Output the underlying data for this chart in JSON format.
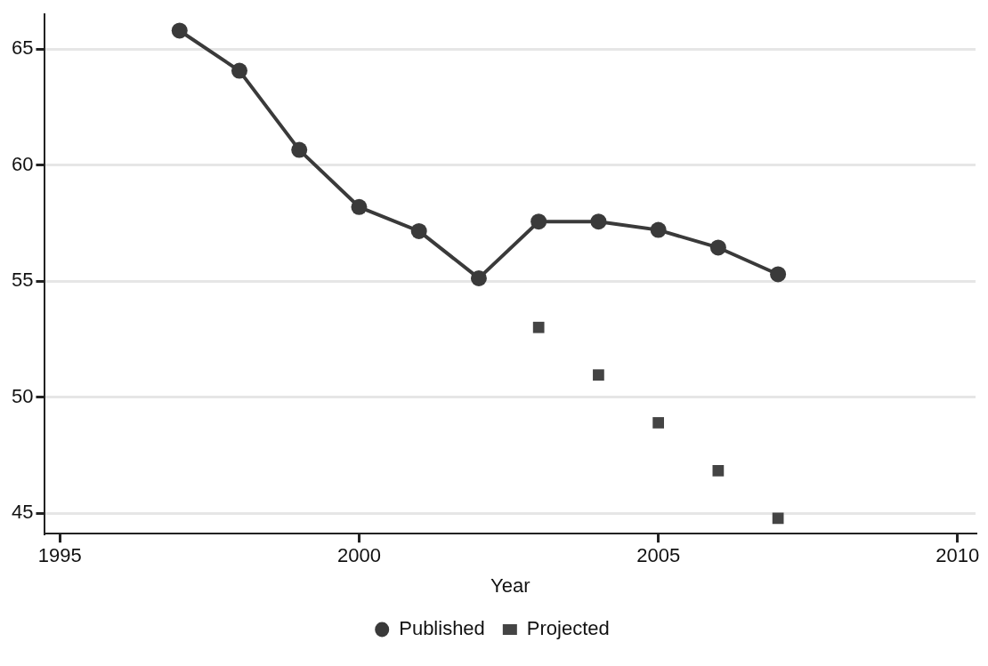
{
  "chart_data": {
    "type": "line",
    "xlabel": "Year",
    "xlim": [
      1994.75,
      2010.3
    ],
    "xticks": [
      1995,
      2000,
      2005,
      2010
    ],
    "ylim": [
      44.12,
      66.5
    ],
    "yticks": [
      45,
      50,
      55,
      60,
      65
    ],
    "grid": "y",
    "legend": "bottom",
    "series": [
      {
        "name": "Published",
        "marker": "circle",
        "line_style": "solid",
        "color": "#3a3a3a",
        "x": [
          1997,
          1998,
          1999,
          2000,
          2001,
          2002,
          2003,
          2004,
          2005,
          2006,
          2007
        ],
        "values": [
          65.8,
          64.07,
          60.66,
          58.2,
          57.16,
          55.13,
          57.57,
          57.57,
          57.21,
          56.45,
          55.3
        ]
      },
      {
        "name": "Projected",
        "type": "scatter",
        "marker": "square",
        "color": "#444444",
        "x": [
          2003,
          2004,
          2005,
          2006,
          2007
        ],
        "values": [
          53.01,
          50.96,
          48.9,
          46.83,
          44.78
        ]
      }
    ]
  }
}
